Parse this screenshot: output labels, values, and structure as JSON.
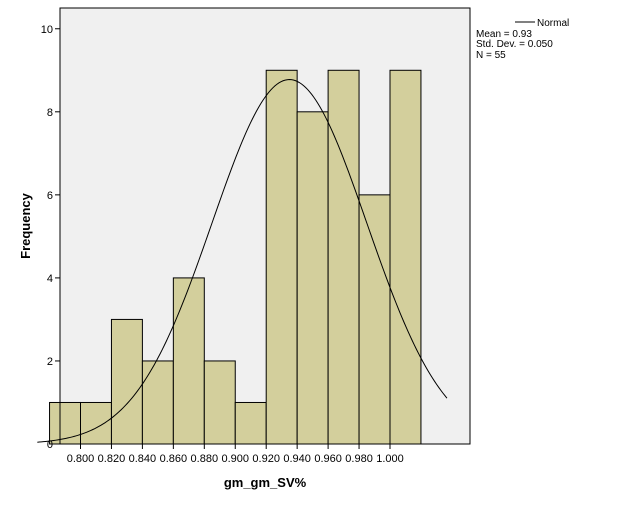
{
  "chart_data": {
    "type": "bar",
    "subtype": "histogram",
    "bins": [
      {
        "start": 0.79,
        "end": 0.81,
        "count": 1
      },
      {
        "start": 0.81,
        "end": 0.83,
        "count": 1
      },
      {
        "start": 0.83,
        "end": 0.85,
        "count": 3
      },
      {
        "start": 0.85,
        "end": 0.87,
        "count": 2
      },
      {
        "start": 0.87,
        "end": 0.89,
        "count": 4
      },
      {
        "start": 0.89,
        "end": 0.91,
        "count": 2
      },
      {
        "start": 0.91,
        "end": 0.93,
        "count": 1
      },
      {
        "start": 0.93,
        "end": 0.95,
        "count": 9
      },
      {
        "start": 0.95,
        "end": 0.97,
        "count": 8
      },
      {
        "start": 0.97,
        "end": 0.99,
        "count": 9
      },
      {
        "start": 0.99,
        "end": 1.01,
        "count": 6
      },
      {
        "start": 1.01,
        "end": 1.03,
        "count": 9
      }
    ],
    "normal_curve": {
      "mean": 0.935,
      "std_dev": 0.05,
      "n": 55,
      "bin_width": 0.02
    },
    "xlabel": "gm_gm_SV%",
    "ylabel": "Frequency",
    "xlim": [
      0.7721,
      1.0368
    ],
    "ylim": [
      0,
      10.5
    ],
    "xticks": [
      "0.800",
      "0.820",
      "0.840",
      "0.860",
      "0.880",
      "0.900",
      "0.920",
      "0.940",
      "0.960",
      "0.980",
      "1.000"
    ],
    "yticks": [
      "0",
      "2",
      "4",
      "6",
      "8",
      "10"
    ],
    "grid": false,
    "legend": {
      "placement": "top-right, outside plot",
      "series_name": "Normal",
      "stats": [
        "Mean = 0.93",
        "Std. Dev. = 0.050",
        "N = 55"
      ]
    },
    "colors": {
      "bar_fill": "#d3cf9c",
      "bar_edge": "#000000",
      "plot_background": "#f0f0f0",
      "curve": "#000000"
    }
  }
}
